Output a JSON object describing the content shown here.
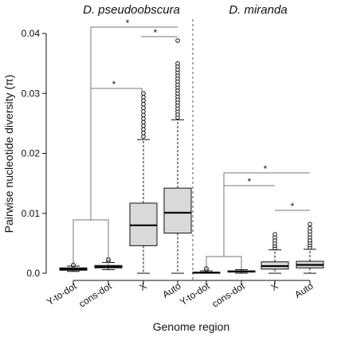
{
  "chart_data": {
    "type": "boxplot",
    "ylabel": "Pairwise nucleotide diversity (π)",
    "xlabel": "Genome region",
    "ylim": [
      0,
      0.04
    ],
    "yticks": [
      "0.0",
      "0.01",
      "0.02",
      "0.03",
      "0.04"
    ],
    "grid": false,
    "significance_marker": "*",
    "panels": [
      {
        "title": "D. pseudoobscura",
        "categories": [
          "Y-to-dot",
          "cons-dot",
          "X",
          "Auto"
        ],
        "boxes": [
          {
            "min": 0.0003,
            "q1": 0.0005,
            "median": 0.0007,
            "q3": 0.0009,
            "max": 0.0012,
            "outliers": [
              0.0013,
              0.0014
            ]
          },
          {
            "min": 0.0006,
            "q1": 0.0009,
            "median": 0.0011,
            "q3": 0.0013,
            "max": 0.0018,
            "outliers": [
              0.0021,
              0.0023
            ]
          },
          {
            "min": 0.0,
            "q1": 0.0046,
            "median": 0.008,
            "q3": 0.0117,
            "max": 0.0223,
            "outliers": [
              0.0228,
              0.0234,
              0.024,
              0.0246,
              0.0252,
              0.0258,
              0.0264,
              0.027,
              0.0276,
              0.0282,
              0.0288,
              0.0294,
              0.03
            ]
          },
          {
            "min": 0.0,
            "q1": 0.0067,
            "median": 0.0101,
            "q3": 0.0142,
            "max": 0.0256,
            "outliers": [
              0.026,
              0.0265,
              0.027,
              0.0275,
              0.028,
              0.0285,
              0.029,
              0.0295,
              0.03,
              0.0305,
              0.031,
              0.0315,
              0.032,
              0.0325,
              0.033,
              0.0335,
              0.034,
              0.0345,
              0.035,
              0.0388
            ]
          }
        ]
      },
      {
        "title": "D. miranda",
        "categories": [
          "Y-to-dot",
          "cons-dot",
          "X",
          "Auto"
        ],
        "boxes": [
          {
            "min": 0.0,
            "q1": 5e-05,
            "median": 0.0001,
            "q3": 0.0002,
            "max": 0.0004,
            "outliers": [
              0.0006,
              0.0008
            ]
          },
          {
            "min": 0.0,
            "q1": 0.0002,
            "median": 0.0003,
            "q3": 0.0004,
            "max": 0.0006,
            "outliers": []
          },
          {
            "min": 0.0,
            "q1": 0.0007,
            "median": 0.0012,
            "q3": 0.0019,
            "max": 0.0039,
            "outliers": [
              0.0042,
              0.0046,
              0.005,
              0.0055,
              0.006,
              0.0065
            ]
          },
          {
            "min": 0.0,
            "q1": 0.0009,
            "median": 0.0014,
            "q3": 0.002,
            "max": 0.004,
            "outliers": [
              0.0043,
              0.0047,
              0.0051,
              0.0055,
              0.006,
              0.0065,
              0.007,
              0.0075,
              0.0082
            ]
          }
        ]
      }
    ]
  }
}
